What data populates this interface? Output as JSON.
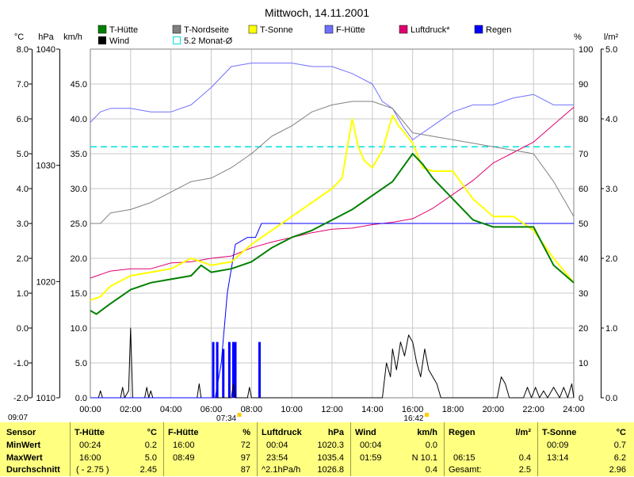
{
  "chart_data": {
    "type": "line",
    "title": "Mittwoch, 14.11.2001",
    "x_ticks": [
      "00:00",
      "02:00",
      "04:00",
      "06:00",
      "08:00",
      "10:00",
      "12:00",
      "14:00",
      "16:00",
      "18:00",
      "20:00",
      "22:00",
      "24:00"
    ],
    "x_range_hours": [
      0,
      24
    ],
    "axes": {
      "temp": {
        "label": "°C",
        "range": [
          -2.0,
          8.0
        ],
        "ticks": [
          "8.0",
          "7.0",
          "6.0",
          "5.0",
          "4.0",
          "3.0",
          "2.0",
          "1.0",
          "0.0",
          "-1.0",
          "-2.0"
        ]
      },
      "pressure": {
        "label": "hPa",
        "range": [
          1010,
          1040
        ],
        "ticks": [
          "1040",
          "1030",
          "1020",
          "1010"
        ]
      },
      "wind": {
        "label": "km/h",
        "range": [
          0,
          50
        ],
        "ticks": [
          "45.0",
          "40.0",
          "35.0",
          "30.0",
          "25.0",
          "20.0",
          "15.0",
          "10.0",
          "5.0",
          "0.0"
        ]
      },
      "humidity": {
        "label": "%",
        "range": [
          0,
          100
        ],
        "ticks": [
          "100",
          "90",
          "80",
          "70",
          "60",
          "50",
          "40",
          "30",
          "20",
          "10",
          "0"
        ]
      },
      "rain": {
        "label": "l/m²",
        "range": [
          0,
          5
        ],
        "ticks": [
          "5.0",
          "4.0",
          "3.0",
          "2.0",
          "1.0",
          "0.0"
        ]
      }
    },
    "legend": [
      {
        "name": "T-Hütte",
        "color": "#008000"
      },
      {
        "name": "Wind",
        "color": "#000000"
      },
      {
        "name": "T-Nordseite",
        "color": "#808080"
      },
      {
        "name": "5.2 Monat-Ø",
        "color": "#00e0e0"
      },
      {
        "name": "T-Sonne",
        "color": "#ffff00"
      },
      {
        "name": "F-Hütte",
        "color": "#7070ff"
      },
      {
        "name": "Luftdruck*",
        "color": "#e00070"
      },
      {
        "name": "Regen",
        "color": "#0000ff"
      }
    ],
    "monthly_average": {
      "axis": "temp",
      "value": 5.2
    },
    "series": [
      {
        "name": "T-Hütte",
        "axis": "temp",
        "color": "#008000",
        "width": 2,
        "x": [
          0,
          0.3,
          1,
          1.5,
          2,
          3,
          4,
          5,
          5.5,
          6,
          7,
          8,
          9,
          10,
          11,
          12,
          13,
          14,
          15,
          15.5,
          16,
          16.5,
          17,
          18,
          19,
          20,
          21,
          22,
          23,
          24
        ],
        "y": [
          0.5,
          0.4,
          0.7,
          0.9,
          1.1,
          1.3,
          1.4,
          1.5,
          1.8,
          1.6,
          1.7,
          1.9,
          2.3,
          2.6,
          2.8,
          3.1,
          3.4,
          3.8,
          4.2,
          4.6,
          5.0,
          4.7,
          4.3,
          3.7,
          3.1,
          2.9,
          2.9,
          2.9,
          1.8,
          1.3
        ]
      },
      {
        "name": "T-Nordseite",
        "axis": "temp",
        "color": "#808080",
        "width": 1,
        "x": [
          0,
          0.5,
          1,
          2,
          3,
          4,
          5,
          6,
          7,
          8,
          9,
          10,
          11,
          12,
          13,
          14,
          15,
          16,
          17,
          18,
          19,
          20,
          21,
          22,
          23,
          24
        ],
        "y": [
          3.0,
          3.0,
          3.3,
          3.4,
          3.6,
          3.9,
          4.2,
          4.3,
          4.6,
          5.0,
          5.5,
          5.8,
          6.2,
          6.4,
          6.5,
          6.5,
          6.3,
          5.6,
          5.5,
          5.4,
          5.3,
          5.2,
          5.1,
          5.0,
          4.2,
          3.2
        ]
      },
      {
        "name": "T-Sonne",
        "axis": "temp",
        "color": "#ffff00",
        "width": 2,
        "x": [
          0,
          0.5,
          1,
          2,
          3,
          4,
          5,
          6,
          7,
          8,
          9,
          10,
          11,
          12,
          12.5,
          13,
          13.3,
          13.6,
          14,
          14.5,
          15,
          15.3,
          15.6,
          16,
          16.5,
          17,
          18,
          19,
          20,
          21,
          22,
          23,
          24
        ],
        "y": [
          0.8,
          0.9,
          1.2,
          1.5,
          1.6,
          1.7,
          2.0,
          1.8,
          1.9,
          2.4,
          2.8,
          3.2,
          3.6,
          4.0,
          4.3,
          6.0,
          5.2,
          4.8,
          4.6,
          5.1,
          6.1,
          5.8,
          5.6,
          5.3,
          4.6,
          4.5,
          4.5,
          3.7,
          3.2,
          3.2,
          2.8,
          2.0,
          1.3
        ]
      },
      {
        "name": "F-Hütte",
        "axis": "humidity",
        "color": "#7070ff",
        "width": 1,
        "x": [
          0,
          0.5,
          1,
          2,
          3,
          4,
          5,
          6,
          7,
          8,
          9,
          10,
          11,
          12,
          13,
          14,
          14.5,
          15,
          15.5,
          16,
          17,
          18,
          19,
          20,
          21,
          22,
          23,
          24
        ],
        "y": [
          79,
          82,
          83,
          83,
          82,
          82,
          84,
          89,
          95,
          96,
          96,
          96,
          95,
          95,
          93,
          90,
          85,
          83,
          78,
          74,
          78,
          82,
          84,
          84,
          86,
          87,
          84,
          84
        ]
      },
      {
        "name": "Luftdruck*",
        "axis": "pressure",
        "color": "#e00070",
        "width": 1,
        "x": [
          0,
          0.5,
          1,
          2,
          3,
          4,
          5,
          6,
          7,
          8,
          9,
          10,
          11,
          12,
          13,
          14,
          15,
          16,
          17,
          18,
          19,
          20,
          21,
          22,
          23,
          24
        ],
        "y": [
          1020.3,
          1020.6,
          1020.9,
          1021.1,
          1021.1,
          1021.6,
          1021.7,
          1022.0,
          1022.2,
          1022.9,
          1023.4,
          1023.8,
          1024.2,
          1024.5,
          1024.6,
          1024.9,
          1025.1,
          1025.4,
          1026.3,
          1027.5,
          1028.7,
          1030.2,
          1031.1,
          1032.0,
          1033.5,
          1035.0
        ]
      },
      {
        "name": "Regen",
        "axis": "rain",
        "color": "#0000ff",
        "width": 1,
        "kind": "cumulative",
        "x": [
          0,
          6.2,
          6.5,
          6.8,
          7.2,
          7.8,
          8.2,
          8.5,
          24
        ],
        "y": [
          0,
          0,
          0.5,
          1.5,
          2.2,
          2.3,
          2.3,
          2.5,
          2.5
        ]
      },
      {
        "name": "Wind",
        "axis": "wind",
        "color": "#000000",
        "width": 1,
        "x": [
          0,
          0.4,
          0.5,
          0.6,
          1.5,
          1.6,
          1.7,
          1.9,
          2.0,
          2.1,
          2.2,
          2.7,
          2.8,
          2.9,
          3.0,
          3.1,
          5.3,
          5.4,
          5.5,
          7.0,
          7.1,
          7.2,
          7.8,
          7.9,
          8.0,
          14.5,
          14.7,
          14.9,
          15.0,
          15.2,
          15.4,
          15.6,
          15.8,
          16.0,
          16.2,
          16.4,
          16.6,
          16.8,
          17.0,
          17.2,
          17.4,
          20.2,
          20.4,
          20.6,
          20.8,
          21.5,
          21.7,
          21.9,
          22.1,
          22.3,
          22.5,
          22.7,
          23.0,
          23.3,
          23.5,
          23.7,
          23.9,
          24
        ],
        "y": [
          0,
          0,
          1,
          0,
          0,
          1.5,
          0,
          1,
          10,
          0,
          0,
          0,
          1.5,
          0,
          1,
          0,
          0,
          2,
          0,
          0,
          2,
          0,
          0,
          1.5,
          0,
          0,
          5,
          3,
          7,
          4,
          8,
          6,
          9,
          8,
          5,
          3,
          7,
          4,
          3,
          2,
          0,
          0,
          3,
          2,
          0,
          0,
          1.5,
          0,
          1.5,
          0,
          1,
          0,
          1.5,
          0,
          1.5,
          0,
          2,
          0
        ]
      }
    ],
    "rain_bars": {
      "axis": "rain",
      "color": "#0000ff",
      "x": [
        6.1,
        6.3,
        6.6,
        6.9,
        7.1,
        7.2,
        8.4
      ],
      "y": [
        0.8,
        0.8,
        0.7,
        0.8,
        0.8,
        0.8,
        0.8
      ]
    },
    "markers": [
      {
        "x": 7.4,
        "label": "07:34",
        "color": "#ffcc00"
      },
      {
        "x": 16.7,
        "label": "16:42",
        "color": "#ffcc00"
      }
    ],
    "corner_label": "09:07"
  },
  "stats": {
    "header": {
      "sensor": "Sensor",
      "t_huette": "T-Hütte",
      "t_huette_unit": "°C",
      "f_huette": "F-Hütte",
      "f_huette_unit": "%",
      "luftdruck": "Luftdruck",
      "luftdruck_unit": "hPa",
      "wind": "Wind",
      "wind_unit": "km/h",
      "regen": "Regen",
      "regen_unit": "l/m²",
      "t_sonne": "T-Sonne",
      "t_sonne_unit": "°C"
    },
    "min": {
      "label": "MinWert",
      "t_huette_time": "00:24",
      "t_huette_val": "0.2",
      "f_huette_time": "16:00",
      "f_huette_val": "72",
      "luftdruck_time": "00:04",
      "luftdruck_val": "1020.3",
      "wind_time": "00:04",
      "wind_val": "0.0",
      "regen_time": "",
      "regen_val": "",
      "t_sonne_time": "00:09",
      "t_sonne_val": "0.7"
    },
    "max": {
      "label": "MaxWert",
      "t_huette_time": "16:00",
      "t_huette_val": "5.0",
      "f_huette_time": "08:49",
      "f_huette_val": "97",
      "luftdruck_time": "23:54",
      "luftdruck_val": "1035.4",
      "wind_time": "01:59",
      "wind_val": "N 10.1",
      "regen_time": "06:15",
      "regen_val": "0.4",
      "t_sonne_time": "13:14",
      "t_sonne_val": "6.2"
    },
    "avg": {
      "label": "Durchschnitt",
      "t_huette_time": "( - 2.75 )",
      "t_huette_val": "2.45",
      "f_huette_time": "",
      "f_huette_val": "87",
      "luftdruck_time": "^2.1hPa/h",
      "luftdruck_val": "1026.8",
      "wind_time": "",
      "wind_val": "0.4",
      "regen_time": "Gesamt:",
      "regen_val": "2.5",
      "t_sonne_time": "",
      "t_sonne_val": "2.96"
    }
  }
}
